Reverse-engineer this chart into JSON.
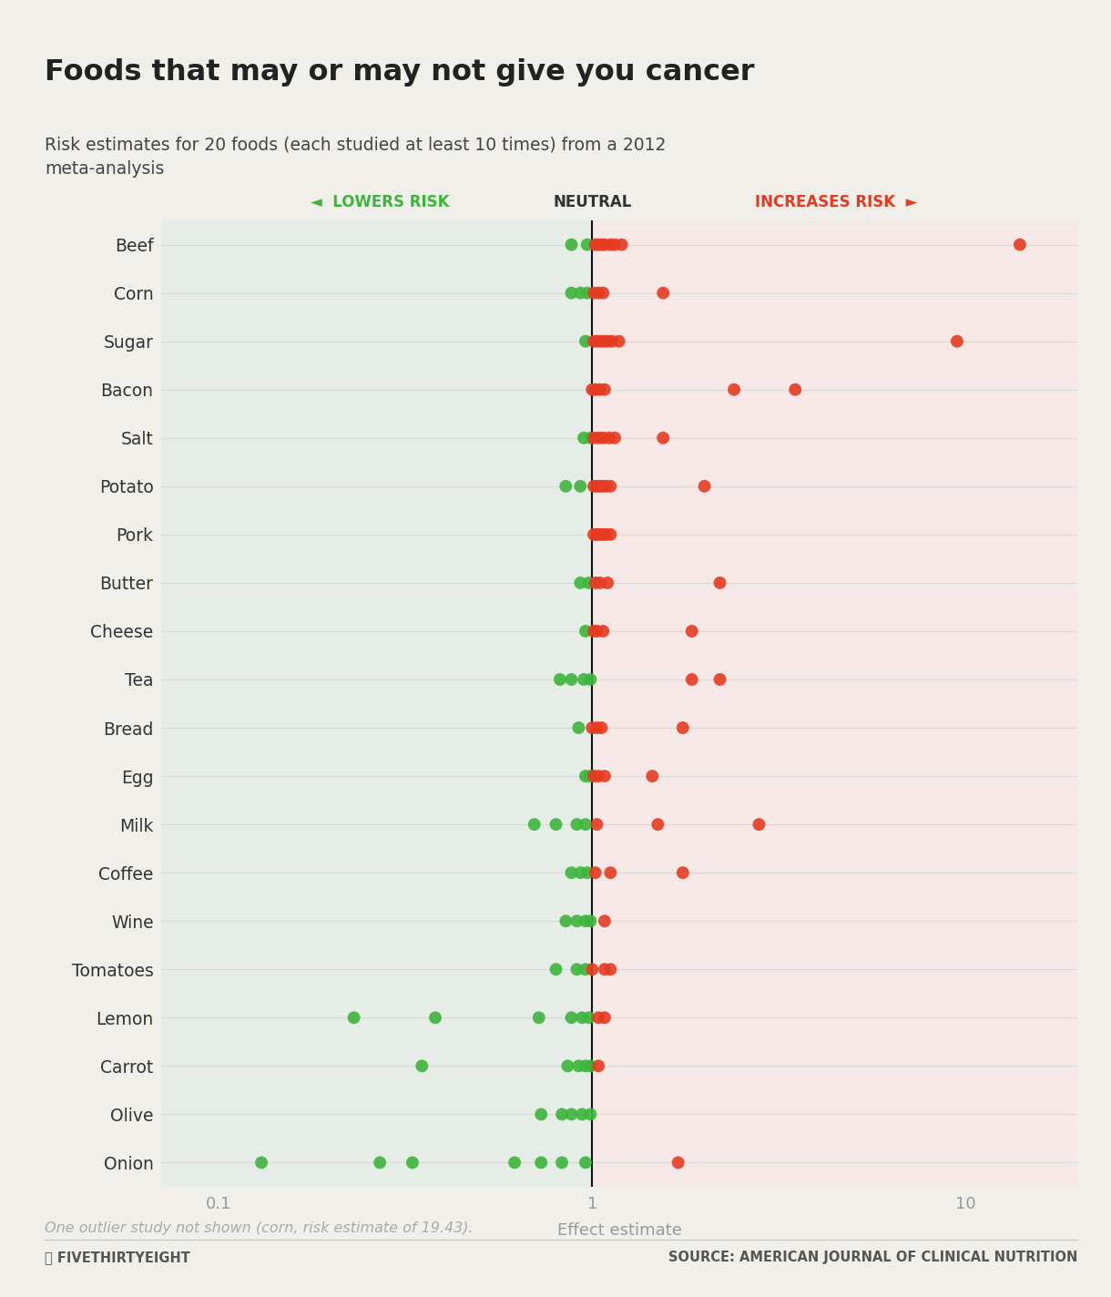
{
  "title": "Foods that may or may not give you cancer",
  "subtitle": "Risk estimates for 20 foods (each studied at least 10 times) from a 2012\nmeta-analysis",
  "xlabel": "Effect estimate",
  "footnote": "One outlier study not shown (corn, risk estimate of 19.43).",
  "source": "SOURCE: AMERICAN JOURNAL OF CLINICAL NUTRITION",
  "credit": "Ⓞ FIVETHIRTYEIGHT",
  "foods": [
    "Beef",
    "Corn",
    "Sugar",
    "Bacon",
    "Salt",
    "Potato",
    "Pork",
    "Butter",
    "Cheese",
    "Tea",
    "Bread",
    "Egg",
    "Milk",
    "Coffee",
    "Wine",
    "Tomatoes",
    "Lemon",
    "Carrot",
    "Olive",
    "Onion"
  ],
  "data": {
    "Beef": {
      "green": [
        0.88,
        0.97
      ],
      "red": [
        1.02,
        1.04,
        1.06,
        1.08,
        1.12,
        1.15,
        1.2,
        14.0
      ]
    },
    "Corn": {
      "green": [
        0.88,
        0.93,
        0.97
      ],
      "red": [
        1.01,
        1.04,
        1.07,
        1.55
      ]
    },
    "Sugar": {
      "green": [
        0.96
      ],
      "red": [
        1.01,
        1.03,
        1.05,
        1.07,
        1.1,
        1.13,
        1.18,
        9.5
      ]
    },
    "Bacon": {
      "green": [],
      "red": [
        1.0,
        1.02,
        1.05,
        1.08,
        2.4,
        3.5
      ]
    },
    "Salt": {
      "green": [
        0.95,
        0.99
      ],
      "red": [
        1.01,
        1.04,
        1.07,
        1.11,
        1.15,
        1.55
      ]
    },
    "Potato": {
      "green": [
        0.85,
        0.93
      ],
      "red": [
        1.01,
        1.03,
        1.05,
        1.07,
        1.09,
        1.12,
        2.0
      ]
    },
    "Pork": {
      "green": [],
      "red": [
        1.01,
        1.03,
        1.05,
        1.07,
        1.09,
        1.12
      ]
    },
    "Butter": {
      "green": [
        0.93,
        0.98
      ],
      "red": [
        1.02,
        1.05,
        1.1,
        2.2
      ]
    },
    "Cheese": {
      "green": [
        0.96
      ],
      "red": [
        1.01,
        1.03,
        1.07,
        1.85
      ]
    },
    "Tea": {
      "green": [
        0.82,
        0.88,
        0.95,
        0.99
      ],
      "red": [
        1.85,
        2.2
      ]
    },
    "Bread": {
      "green": [
        0.92
      ],
      "red": [
        1.0,
        1.03,
        1.06,
        1.75
      ]
    },
    "Egg": {
      "green": [
        0.96,
        0.99
      ],
      "red": [
        1.01,
        1.04,
        1.08,
        1.45
      ]
    },
    "Milk": {
      "green": [
        0.7,
        0.8,
        0.91,
        0.96
      ],
      "red": [
        1.03,
        1.5,
        2.8
      ]
    },
    "Coffee": {
      "green": [
        0.88,
        0.93,
        0.97
      ],
      "red": [
        1.02,
        1.12,
        1.75
      ]
    },
    "Wine": {
      "green": [
        0.85,
        0.91,
        0.96,
        0.99
      ],
      "red": [
        1.08
      ]
    },
    "Tomatoes": {
      "green": [
        0.8,
        0.91,
        0.96
      ],
      "red": [
        1.0,
        1.08,
        1.12
      ]
    },
    "Lemon": {
      "green": [
        0.23,
        0.38,
        0.72,
        0.88,
        0.94,
        0.98
      ],
      "red": [
        1.04,
        1.08
      ]
    },
    "Carrot": {
      "green": [
        0.35,
        0.86,
        0.92,
        0.96,
        0.99
      ],
      "red": [
        1.04
      ]
    },
    "Olive": {
      "green": [
        0.73,
        0.83,
        0.88,
        0.94,
        0.99
      ],
      "red": []
    },
    "Onion": {
      "green": [
        0.13,
        0.27,
        0.33,
        0.62,
        0.73,
        0.83,
        0.96
      ],
      "red": [
        1.7
      ]
    }
  },
  "green_color": "#3db53d",
  "red_color": "#e63b22",
  "bg_left": "#e6ede6",
  "bg_right": "#f5e8e6",
  "page_bg": "#f0efea",
  "grid_color": "#d8d8d8",
  "neutral_line_color": "#111111",
  "title_color": "#222222",
  "subtitle_color": "#444444",
  "food_label_color": "#333333",
  "axis_label_color": "#999999",
  "tick_color": "#999999",
  "dot_size": 100,
  "dot_alpha": 0.9,
  "xlim": [
    0.07,
    20.0
  ]
}
